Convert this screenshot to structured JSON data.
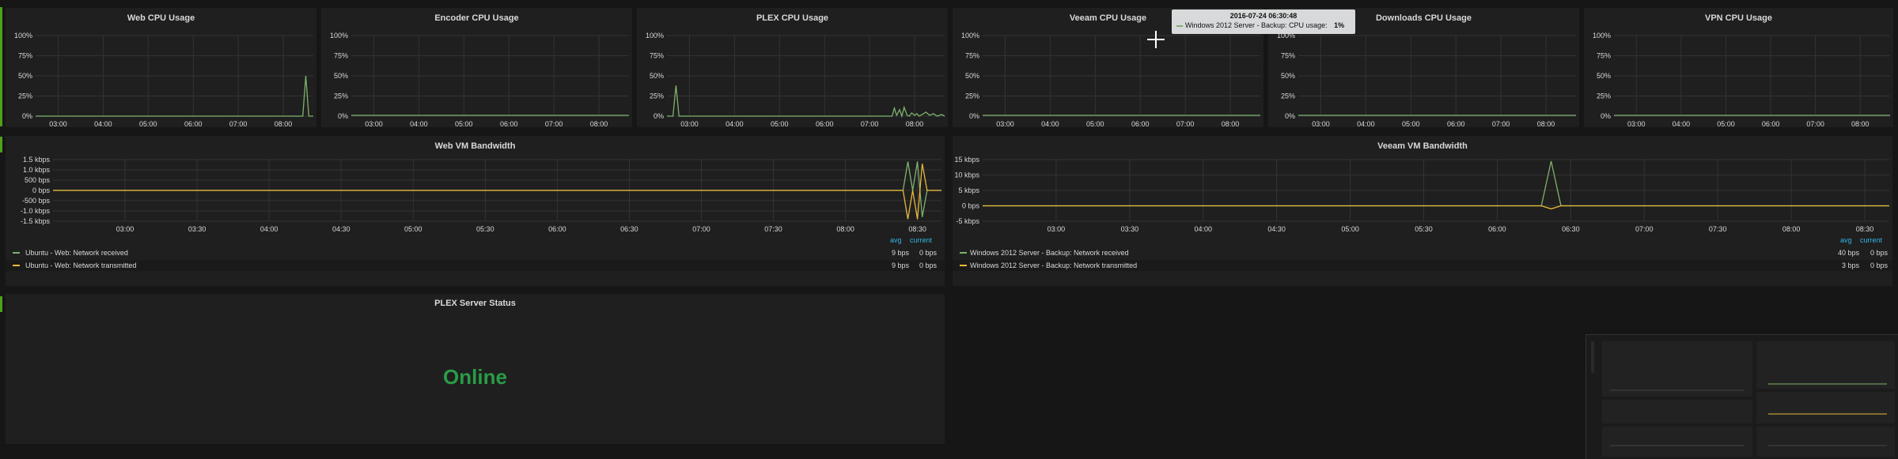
{
  "colors": {
    "received": "#7eb26d",
    "transmitted": "#eab839",
    "status_ok": "#299c46",
    "legend_header": "#33b5e5",
    "row_marker": "#4ea11b"
  },
  "cpu_panels": [
    {
      "title": "Web CPU Usage",
      "y_ticks": [
        "100%",
        "75%",
        "50%",
        "25%",
        "0%"
      ],
      "x_ticks": [
        "03:00",
        "04:00",
        "05:00",
        "06:00",
        "07:00",
        "08:00"
      ]
    },
    {
      "title": "Encoder CPU Usage",
      "y_ticks": [
        "100%",
        "75%",
        "50%",
        "25%",
        "0%"
      ],
      "x_ticks": [
        "03:00",
        "04:00",
        "05:00",
        "06:00",
        "07:00",
        "08:00"
      ]
    },
    {
      "title": "PLEX CPU Usage",
      "y_ticks": [
        "100%",
        "75%",
        "50%",
        "25%",
        "0%"
      ],
      "x_ticks": [
        "03:00",
        "04:00",
        "05:00",
        "06:00",
        "07:00",
        "08:00"
      ]
    },
    {
      "title": "Veeam CPU Usage",
      "y_ticks": [
        "100%",
        "75%",
        "50%",
        "25%",
        "0%"
      ],
      "x_ticks": [
        "03:00",
        "04:00",
        "05:00",
        "06:00",
        "07:00",
        "08:00"
      ]
    },
    {
      "title": "Downloads CPU Usage",
      "y_ticks": [
        "100%",
        "75%",
        "50%",
        "25%",
        "0%"
      ],
      "x_ticks": [
        "03:00",
        "04:00",
        "05:00",
        "06:00",
        "07:00",
        "08:00"
      ]
    },
    {
      "title": "VPN CPU Usage",
      "y_ticks": [
        "100%",
        "75%",
        "50%",
        "25%",
        "0%"
      ],
      "x_ticks": [
        "03:00",
        "04:00",
        "05:00",
        "06:00",
        "07:00",
        "08:00"
      ]
    }
  ],
  "web_bw": {
    "title": "Web VM Bandwidth",
    "y_ticks": [
      "1.5 kbps",
      "1.0 kbps",
      "500 bps",
      "0 bps",
      "-500 bps",
      "-1.0 kbps",
      "-1.5 kbps"
    ],
    "x_ticks": [
      "03:00",
      "03:30",
      "04:00",
      "04:30",
      "05:00",
      "05:30",
      "06:00",
      "06:30",
      "07:00",
      "07:30",
      "08:00",
      "08:30"
    ],
    "legend_headers": {
      "avg": "avg",
      "current": "current"
    },
    "legend": [
      {
        "name": "Ubuntu - Web: Network received",
        "avg": "9 bps",
        "current": "0 bps"
      },
      {
        "name": "Ubuntu - Web: Network transmitted",
        "avg": "9 bps",
        "current": "0 bps"
      }
    ]
  },
  "veeam_bw": {
    "title": "Veeam VM Bandwidth",
    "y_ticks": [
      "15 kbps",
      "10 kbps",
      "5 kbps",
      "0 bps",
      "-5 kbps"
    ],
    "x_ticks": [
      "03:00",
      "03:30",
      "04:00",
      "04:30",
      "05:00",
      "05:30",
      "06:00",
      "06:30",
      "07:00",
      "07:30",
      "08:00",
      "08:30"
    ],
    "legend_headers": {
      "avg": "avg",
      "current": "current"
    },
    "legend": [
      {
        "name": "Windows 2012 Server - Backup: Network received",
        "avg": "40 bps",
        "current": "0 bps"
      },
      {
        "name": "Windows 2012 Server - Backup: Network transmitted",
        "avg": "3 bps",
        "current": "0 bps"
      }
    ]
  },
  "plex_status": {
    "title": "PLEX Server Status",
    "value": "Online"
  },
  "tooltip": {
    "time": "2016-07-24 06:30:48",
    "series": "Windows 2012 Server - Backup: CPU usage:",
    "value": "1%"
  },
  "chart_data": [
    {
      "type": "line",
      "title": "Web CPU Usage",
      "x": [
        "02:30",
        "08:20",
        "08:26",
        "08:30",
        "08:34",
        "08:40"
      ],
      "series": [
        {
          "values": [
            0,
            0,
            0,
            50,
            0,
            0
          ]
        }
      ],
      "ylim": [
        0,
        100
      ]
    },
    {
      "type": "line",
      "title": "Encoder CPU Usage",
      "x": [
        "02:30",
        "08:40"
      ],
      "series": [
        {
          "values": [
            1,
            1
          ]
        }
      ],
      "ylim": [
        0,
        100
      ]
    },
    {
      "type": "line",
      "title": "PLEX CPU Usage",
      "x": [
        "02:30",
        "02:38",
        "02:42",
        "02:46",
        "07:30",
        "07:33",
        "07:36",
        "07:40",
        "07:43",
        "07:46",
        "07:50",
        "07:53",
        "07:56",
        "08:00",
        "08:03",
        "08:06",
        "08:10",
        "08:15",
        "08:20",
        "08:25",
        "08:30",
        "08:36",
        "08:40"
      ],
      "series": [
        {
          "values": [
            0,
            0,
            38,
            0,
            0,
            10,
            1,
            8,
            0,
            11,
            1,
            0,
            4,
            1,
            3,
            0,
            2,
            5,
            1,
            3,
            0,
            2,
            0
          ]
        }
      ],
      "ylim": [
        0,
        100
      ]
    },
    {
      "type": "line",
      "title": "Veeam CPU Usage",
      "x": [
        "02:30",
        "08:40"
      ],
      "series": [
        {
          "values": [
            1,
            1
          ]
        }
      ],
      "ylim": [
        0,
        100
      ]
    },
    {
      "type": "line",
      "title": "Downloads CPU Usage",
      "x": [
        "02:30",
        "08:40"
      ],
      "series": [
        {
          "values": [
            1,
            1
          ]
        }
      ],
      "ylim": [
        0,
        100
      ]
    },
    {
      "type": "line",
      "title": "VPN CPU Usage",
      "x": [
        "02:30",
        "08:40"
      ],
      "series": [
        {
          "values": [
            1,
            1
          ]
        }
      ],
      "ylim": [
        0,
        100
      ]
    },
    {
      "type": "line",
      "title": "Web VM Bandwidth",
      "x": [
        "02:30",
        "08:24",
        "08:26",
        "08:28",
        "08:30",
        "08:32",
        "08:34",
        "08:40"
      ],
      "series": [
        {
          "name": "Ubuntu - Web: Network received",
          "values": [
            0,
            0,
            1.4,
            0,
            1.4,
            -1.3,
            0,
            0
          ]
        },
        {
          "name": "Ubuntu - Web: Network transmitted",
          "values": [
            0,
            0,
            -1.4,
            0,
            -1.4,
            1.3,
            0,
            0
          ]
        }
      ],
      "ylim": [
        -1.5,
        1.5
      ]
    },
    {
      "type": "line",
      "title": "Veeam VM Bandwidth",
      "x": [
        "02:30",
        "06:18",
        "06:22",
        "06:26",
        "08:40"
      ],
      "series": [
        {
          "name": "Windows 2012 Server - Backup: Network received",
          "values": [
            0,
            0,
            14.5,
            0,
            0
          ]
        },
        {
          "name": "Windows 2012 Server - Backup: Network transmitted",
          "values": [
            0,
            0,
            -1,
            0,
            0
          ]
        }
      ],
      "ylim": [
        -5,
        15
      ]
    }
  ]
}
